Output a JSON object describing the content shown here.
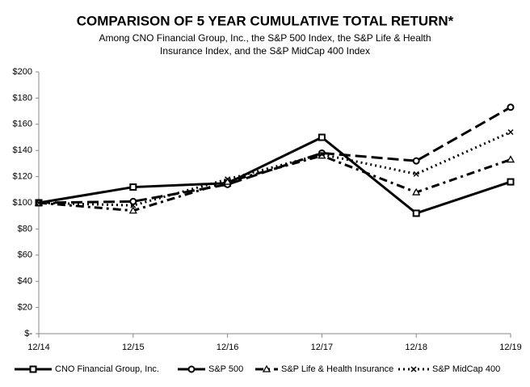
{
  "chart_data": {
    "type": "line",
    "title": "COMPARISON OF 5 YEAR CUMULATIVE TOTAL RETURN*",
    "subtitle": [
      "Among CNO Financial Group, Inc., the S&P 500 Index, the S&P Life & Health",
      "Insurance Index, and the S&P MidCap 400 Index"
    ],
    "categories": [
      "12/14",
      "12/15",
      "12/16",
      "12/17",
      "12/18",
      "12/19"
    ],
    "series": [
      {
        "name": "CNO Financial Group, Inc.",
        "color": "#000000",
        "dash": "solid",
        "marker": "square",
        "values": [
          100,
          112,
          115,
          150,
          92,
          116
        ]
      },
      {
        "name": "S&P 500",
        "color": "#000000",
        "dash": "long-dash",
        "marker": "circle",
        "values": [
          100,
          101,
          114,
          138,
          132,
          173
        ]
      },
      {
        "name": "S&P Life & Health Insurance",
        "color": "#000000",
        "dash": "dash-dot",
        "marker": "triangle",
        "values": [
          100,
          94,
          116,
          136,
          108,
          133
        ]
      },
      {
        "name": "S&P MidCap 400",
        "color": "#000000",
        "dash": "dotted",
        "marker": "x",
        "values": [
          100,
          98,
          118,
          137,
          122,
          154
        ]
      }
    ],
    "ylim": [
      0,
      200
    ],
    "yticks": [
      {
        "value": 0,
        "label": "$-"
      },
      {
        "value": 20,
        "label": "$20"
      },
      {
        "value": 40,
        "label": "$40"
      },
      {
        "value": 60,
        "label": "$60"
      },
      {
        "value": 80,
        "label": "$80"
      },
      {
        "value": 100,
        "label": "$100"
      },
      {
        "value": 120,
        "label": "$120"
      },
      {
        "value": 140,
        "label": "$140"
      },
      {
        "value": 160,
        "label": "$160"
      },
      {
        "value": 180,
        "label": "$180"
      },
      {
        "value": 200,
        "label": "$200"
      }
    ],
    "grid": false,
    "legend": "bottom"
  }
}
